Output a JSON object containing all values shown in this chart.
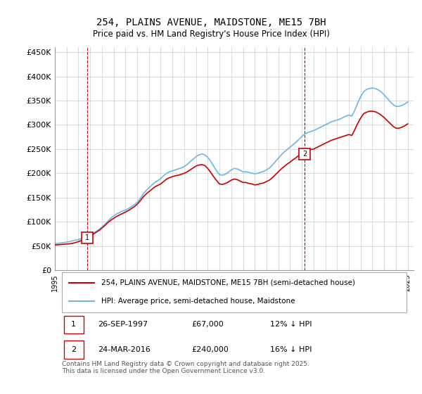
{
  "title": "254, PLAINS AVENUE, MAIDSTONE, ME15 7BH",
  "subtitle": "Price paid vs. HM Land Registry's House Price Index (HPI)",
  "ylabel_ticks": [
    "£0",
    "£50K",
    "£100K",
    "£150K",
    "£200K",
    "£250K",
    "£300K",
    "£350K",
    "£400K",
    "£450K"
  ],
  "ytick_vals": [
    0,
    50000,
    100000,
    150000,
    200000,
    250000,
    300000,
    350000,
    400000,
    450000
  ],
  "ylim": [
    0,
    460000
  ],
  "xlim_start": 1995.0,
  "xlim_end": 2025.5,
  "hpi_color": "#6db6e8",
  "price_color": "#cc0000",
  "marker1_x": 1997.74,
  "marker1_y": 67000,
  "marker1_label": "1",
  "marker2_x": 2016.23,
  "marker2_y": 240000,
  "marker2_label": "2",
  "vline1_x": 1997.74,
  "vline2_x": 2016.23,
  "legend_line1": "254, PLAINS AVENUE, MAIDSTONE, ME15 7BH (semi-detached house)",
  "legend_line2": "HPI: Average price, semi-detached house, Maidstone",
  "table_row1": [
    "1",
    "26-SEP-1997",
    "£67,000",
    "12% ↓ HPI"
  ],
  "table_row2": [
    "2",
    "24-MAR-2016",
    "£240,000",
    "16% ↓ HPI"
  ],
  "footnote": "Contains HM Land Registry data © Crown copyright and database right 2025.\nThis data is licensed under the Open Government Licence v3.0.",
  "bg_color": "#ffffff",
  "grid_color": "#cccccc",
  "hpi_data_x": [
    1995.0,
    1995.25,
    1995.5,
    1995.75,
    1996.0,
    1996.25,
    1996.5,
    1996.75,
    1997.0,
    1997.25,
    1997.5,
    1997.75,
    1998.0,
    1998.25,
    1998.5,
    1998.75,
    1999.0,
    1999.25,
    1999.5,
    1999.75,
    2000.0,
    2000.25,
    2000.5,
    2000.75,
    2001.0,
    2001.25,
    2001.5,
    2001.75,
    2002.0,
    2002.25,
    2002.5,
    2002.75,
    2003.0,
    2003.25,
    2003.5,
    2003.75,
    2004.0,
    2004.25,
    2004.5,
    2004.75,
    2005.0,
    2005.25,
    2005.5,
    2005.75,
    2006.0,
    2006.25,
    2006.5,
    2006.75,
    2007.0,
    2007.25,
    2007.5,
    2007.75,
    2008.0,
    2008.25,
    2008.5,
    2008.75,
    2009.0,
    2009.25,
    2009.5,
    2009.75,
    2010.0,
    2010.25,
    2010.5,
    2010.75,
    2011.0,
    2011.25,
    2011.5,
    2011.75,
    2012.0,
    2012.25,
    2012.5,
    2012.75,
    2013.0,
    2013.25,
    2013.5,
    2013.75,
    2014.0,
    2014.25,
    2014.5,
    2014.75,
    2015.0,
    2015.25,
    2015.5,
    2015.75,
    2016.0,
    2016.25,
    2016.5,
    2016.75,
    2017.0,
    2017.25,
    2017.5,
    2017.75,
    2018.0,
    2018.25,
    2018.5,
    2018.75,
    2019.0,
    2019.25,
    2019.5,
    2019.75,
    2020.0,
    2020.25,
    2020.5,
    2020.75,
    2021.0,
    2021.25,
    2021.5,
    2021.75,
    2022.0,
    2022.25,
    2022.5,
    2022.75,
    2023.0,
    2023.25,
    2023.5,
    2023.75,
    2024.0,
    2024.25,
    2024.5,
    2024.75,
    2025.0
  ],
  "hpi_data_y": [
    55000,
    55500,
    56000,
    57000,
    58000,
    59000,
    60500,
    62000,
    63000,
    65000,
    67000,
    70000,
    73000,
    76000,
    80000,
    84000,
    89000,
    95000,
    101000,
    107000,
    112000,
    116000,
    119000,
    122000,
    124000,
    127000,
    131000,
    135000,
    140000,
    148000,
    157000,
    164000,
    170000,
    176000,
    181000,
    185000,
    189000,
    195000,
    200000,
    203000,
    205000,
    207000,
    209000,
    211000,
    214000,
    218000,
    224000,
    229000,
    234000,
    238000,
    240000,
    238000,
    233000,
    225000,
    215000,
    205000,
    197000,
    196000,
    198000,
    202000,
    207000,
    210000,
    209000,
    206000,
    203000,
    203000,
    202000,
    200000,
    199000,
    200000,
    202000,
    204000,
    207000,
    211000,
    217000,
    224000,
    231000,
    238000,
    244000,
    249000,
    254000,
    259000,
    264000,
    270000,
    276000,
    281000,
    284000,
    286000,
    288000,
    291000,
    294000,
    297000,
    300000,
    303000,
    306000,
    308000,
    310000,
    312000,
    315000,
    318000,
    320000,
    318000,
    330000,
    345000,
    358000,
    368000,
    373000,
    375000,
    376000,
    375000,
    372000,
    368000,
    362000,
    355000,
    348000,
    342000,
    338000,
    338000,
    340000,
    343000,
    347000
  ],
  "price_data_x": [
    1995.0,
    1995.25,
    1995.5,
    1995.75,
    1996.0,
    1996.25,
    1996.5,
    1996.75,
    1997.0,
    1997.25,
    1997.5,
    1997.75,
    1998.0,
    1998.25,
    1998.5,
    1998.75,
    1999.0,
    1999.25,
    1999.5,
    1999.75,
    2000.0,
    2000.25,
    2000.5,
    2000.75,
    2001.0,
    2001.25,
    2001.5,
    2001.75,
    2002.0,
    2002.25,
    2002.5,
    2002.75,
    2003.0,
    2003.25,
    2003.5,
    2003.75,
    2004.0,
    2004.25,
    2004.5,
    2004.75,
    2005.0,
    2005.25,
    2005.5,
    2005.75,
    2006.0,
    2006.25,
    2006.5,
    2006.75,
    2007.0,
    2007.25,
    2007.5,
    2007.75,
    2008.0,
    2008.25,
    2008.5,
    2008.75,
    2009.0,
    2009.25,
    2009.5,
    2009.75,
    2010.0,
    2010.25,
    2010.5,
    2010.75,
    2011.0,
    2011.25,
    2011.5,
    2011.75,
    2012.0,
    2012.25,
    2012.5,
    2012.75,
    2013.0,
    2013.25,
    2013.5,
    2013.75,
    2014.0,
    2014.25,
    2014.5,
    2014.75,
    2015.0,
    2015.25,
    2015.5,
    2015.75,
    2016.0,
    2016.25,
    2016.5,
    2016.75,
    2017.0,
    2017.25,
    2017.5,
    2017.75,
    2018.0,
    2018.25,
    2018.5,
    2018.75,
    2019.0,
    2019.25,
    2019.5,
    2019.75,
    2020.0,
    2020.25,
    2020.5,
    2020.75,
    2021.0,
    2021.25,
    2021.5,
    2021.75,
    2022.0,
    2022.25,
    2022.5,
    2022.75,
    2023.0,
    2023.25,
    2023.5,
    2023.75,
    2024.0,
    2024.25,
    2024.5,
    2024.75,
    2025.0
  ],
  "price_data_y": [
    52000,
    52500,
    53000,
    53500,
    54000,
    54500,
    55500,
    57000,
    59000,
    61000,
    63000,
    67000,
    70000,
    74000,
    78000,
    82000,
    87000,
    92000,
    98000,
    103000,
    107000,
    111000,
    114000,
    117000,
    120000,
    123000,
    127000,
    131000,
    136000,
    143000,
    151000,
    157000,
    162000,
    167000,
    172000,
    175000,
    178000,
    183000,
    188000,
    191000,
    193000,
    195000,
    196000,
    198000,
    200000,
    203000,
    207000,
    211000,
    215000,
    217000,
    218000,
    216000,
    210000,
    202000,
    193000,
    185000,
    178000,
    177000,
    179000,
    182000,
    186000,
    188000,
    187000,
    184000,
    181000,
    181000,
    179000,
    178000,
    176000,
    177000,
    179000,
    180000,
    183000,
    186000,
    191000,
    197000,
    203000,
    209000,
    214000,
    219000,
    223000,
    228000,
    232000,
    237000,
    242000,
    246000,
    248000,
    249000,
    250000,
    253000,
    256000,
    259000,
    262000,
    265000,
    268000,
    270000,
    272000,
    274000,
    276000,
    278000,
    280000,
    278000,
    290000,
    303000,
    314000,
    323000,
    326000,
    328000,
    328000,
    327000,
    324000,
    320000,
    315000,
    309000,
    303000,
    297000,
    293000,
    293000,
    295000,
    298000,
    302000
  ]
}
